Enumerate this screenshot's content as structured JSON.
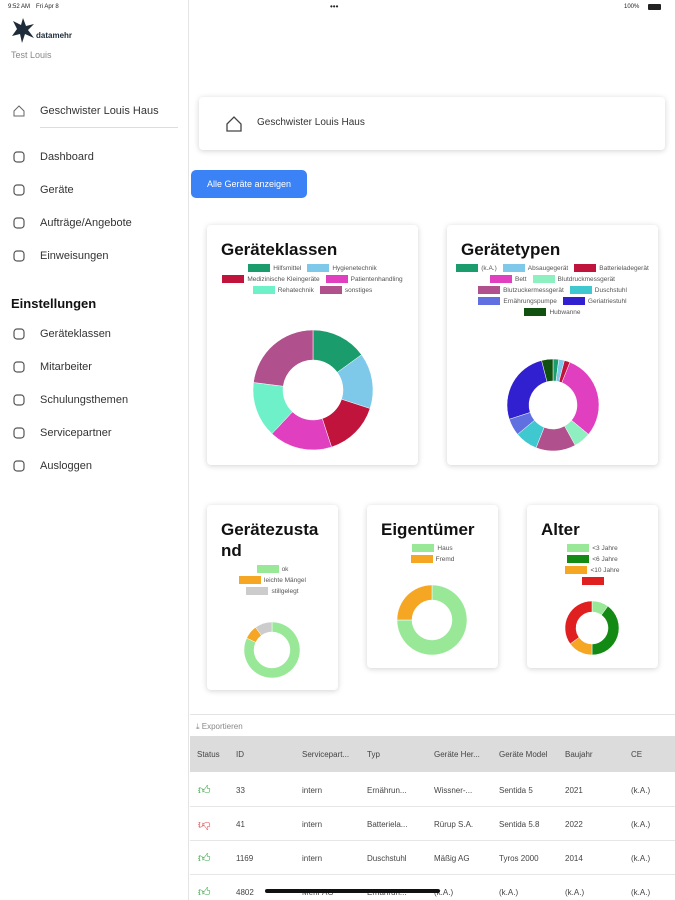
{
  "status_bar": {
    "time": "9:52 AM",
    "date": "Fri Apr 8",
    "battery": "100%"
  },
  "sidebar": {
    "brand": "datamehr",
    "user": "Test Louis",
    "location": "Geschwister Louis Haus",
    "nav": [
      "Dashboard",
      "Geräte",
      "Aufträge/Angebote",
      "Einweisungen"
    ],
    "settings_title": "Einstellungen",
    "settings": [
      "Geräteklassen",
      "Mitarbeiter",
      "Schulungsthemen",
      "Servicepartner",
      "Ausloggen"
    ]
  },
  "header": {
    "location": "Geschwister Louis Haus",
    "button": "Alle Geräte anzeigen"
  },
  "chart_data": [
    {
      "type": "donut",
      "title": "Geräteklassen",
      "categories": [
        "Hilfsmittel",
        "Hygienetechnik",
        "Medizinische Kleingeräte",
        "Patientenhandling",
        "Rehatechnik",
        "sonstiges"
      ],
      "values": [
        15,
        15,
        15,
        17,
        15,
        23
      ],
      "colors": [
        "#1a9c6c",
        "#7ec8ea",
        "#c0143c",
        "#e040c0",
        "#6ef0c8",
        "#b0508c"
      ]
    },
    {
      "type": "donut",
      "title": "Gerätetypen",
      "categories": [
        "(k.A.)",
        "Absaugegerät",
        "Batterieladegerät",
        "Bett",
        "Blutdruckmessgerät",
        "Blutzuckermessgerät",
        "Duschstuhl",
        "Ernährungspumpe",
        "Geriatriestuhl",
        "Hubwanne"
      ],
      "values": [
        2,
        2,
        2,
        30,
        6,
        14,
        8,
        6,
        26,
        4
      ],
      "colors": [
        "#1a9c6c",
        "#7ec8ea",
        "#c0143c",
        "#e040c0",
        "#8ef0c0",
        "#b0508c",
        "#40c8d0",
        "#6070e0",
        "#3020d0",
        "#105010"
      ]
    },
    {
      "type": "donut",
      "title": "Gerätezustand",
      "categories": [
        "ok",
        "leichte Mängel",
        "stillgelegt"
      ],
      "values": [
        82,
        8,
        10
      ],
      "colors": [
        "#98e898",
        "#f5a623",
        "#cccccc"
      ]
    },
    {
      "type": "donut",
      "title": "Eigentümer",
      "categories": [
        "Haus",
        "Fremd"
      ],
      "values": [
        75,
        25
      ],
      "colors": [
        "#98e898",
        "#f5a623"
      ]
    },
    {
      "type": "donut",
      "title": "Alter",
      "categories": [
        "<3 Jahre",
        "<6 Jahre",
        "<10 Jahre",
        null
      ],
      "values": [
        10,
        40,
        15,
        35
      ],
      "colors": [
        "#98e898",
        "#138a13",
        "#f5a623",
        "#e02020"
      ]
    }
  ],
  "table": {
    "export": "Exportieren",
    "columns": [
      "Status",
      "ID",
      "Servicepart...",
      "Typ",
      "Geräte Her...",
      "Geräte Model",
      "Baujahr",
      "CE"
    ],
    "rows": [
      {
        "status_ok": true,
        "cells": [
          "33",
          "intern",
          "Ernährun...",
          "Wissner-...",
          "Sentida 5",
          "2021",
          "(k.A.)"
        ]
      },
      {
        "status_ok": false,
        "cells": [
          "41",
          "intern",
          "Batteriela...",
          "Rürup S.A.",
          "Sentida 5.8",
          "2022",
          "(k.A.)"
        ]
      },
      {
        "status_ok": true,
        "cells": [
          "1169",
          "intern",
          "Duschstuhl",
          "Mäßig AG",
          "Tyros 2000",
          "2014",
          "(k.A.)"
        ]
      },
      {
        "status_ok": true,
        "cells": [
          "4802",
          "Mehr AG",
          "Ernährun...",
          "(k.A.)",
          "(k.A.)",
          "(k.A.)",
          "(k.A.)"
        ]
      }
    ]
  }
}
